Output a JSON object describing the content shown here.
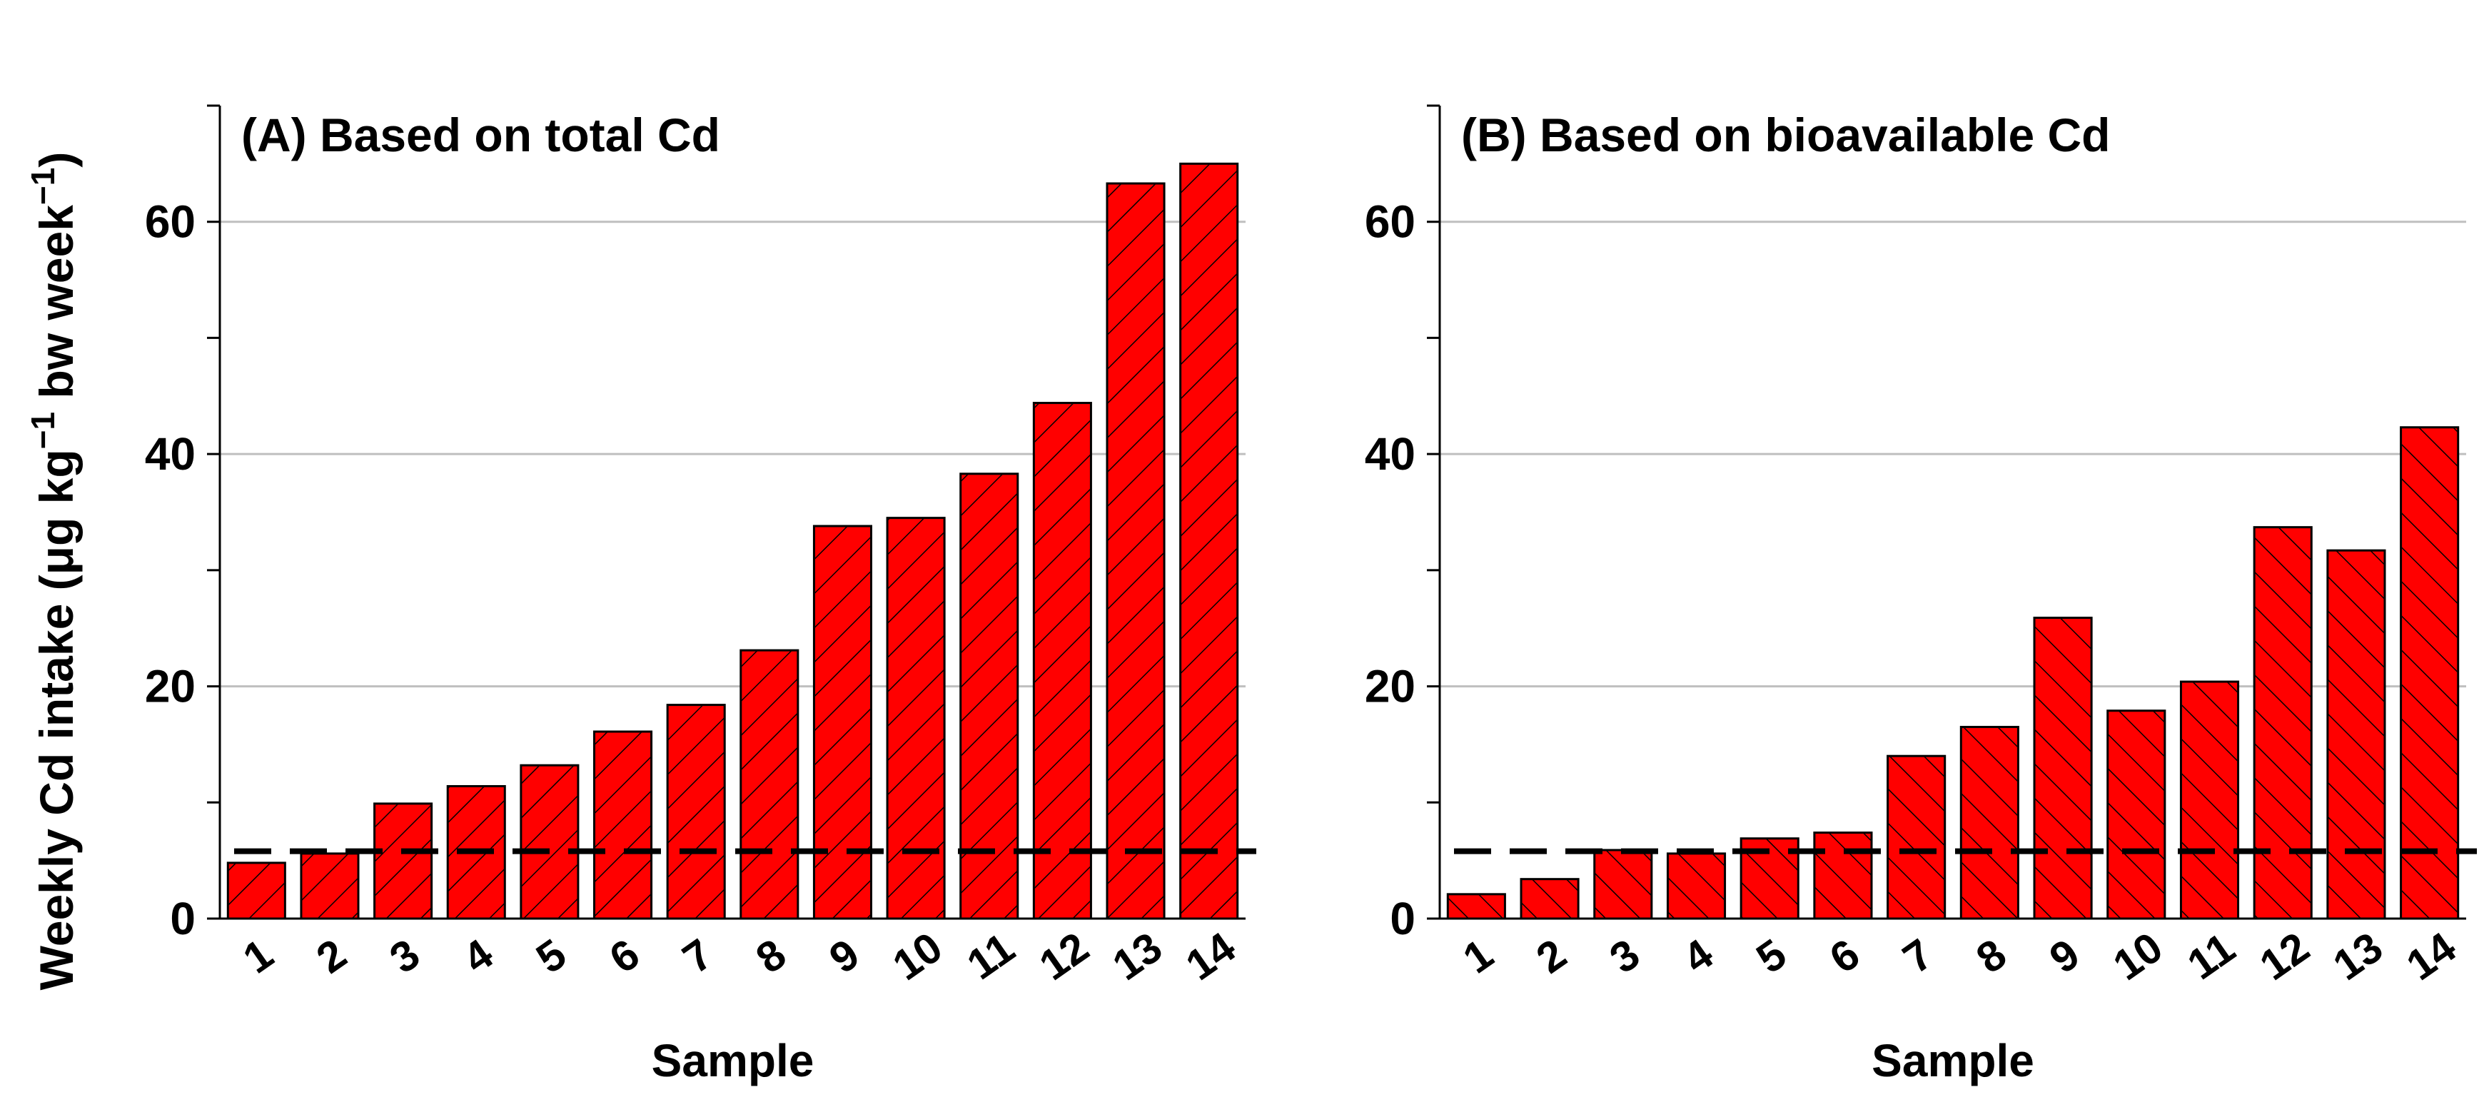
{
  "ylabel": {
    "main": "Weekly Cd intake (μg kg",
    "sup1": "−1",
    "mid": " bw week",
    "sup2": "−1",
    "close": ")"
  },
  "colors": {
    "bar_fill": "#ff0000",
    "bar_stroke": "#000000",
    "hatch": "#000000",
    "grid": "#bfbfbf",
    "threshold_line": "#000000"
  },
  "chart_data": [
    {
      "type": "bar",
      "title": "(A) Based on total Cd",
      "xlabel": "Sample",
      "categories": [
        "1",
        "2",
        "3",
        "4",
        "5",
        "6",
        "7",
        "8",
        "9",
        "10",
        "11",
        "12",
        "13",
        "14"
      ],
      "values": [
        4.8,
        5.6,
        9.9,
        11.4,
        13.2,
        16.1,
        18.4,
        23.1,
        33.8,
        34.5,
        38.3,
        44.4,
        63.3,
        65.0
      ],
      "ylim": [
        0,
        70
      ],
      "yticks": [
        0,
        20,
        40,
        60
      ],
      "minor_yticks": [
        10,
        30,
        50,
        70
      ],
      "grid": true,
      "hatch": "forward-diagonal",
      "threshold": 5.8
    },
    {
      "type": "bar",
      "title": "(B) Based on bioavailable Cd",
      "xlabel": "Sample",
      "categories": [
        "1",
        "2",
        "3",
        "4",
        "5",
        "6",
        "7",
        "8",
        "9",
        "10",
        "11",
        "12",
        "13",
        "14"
      ],
      "values": [
        2.1,
        3.4,
        5.9,
        5.6,
        6.9,
        7.4,
        14.0,
        16.5,
        25.9,
        17.9,
        20.4,
        33.7,
        31.7,
        42.3
      ],
      "ylim": [
        0,
        70
      ],
      "yticks": [
        0,
        20,
        40,
        60
      ],
      "minor_yticks": [
        10,
        30,
        50,
        70
      ],
      "grid": true,
      "hatch": "back-diagonal",
      "threshold": 5.8
    }
  ]
}
